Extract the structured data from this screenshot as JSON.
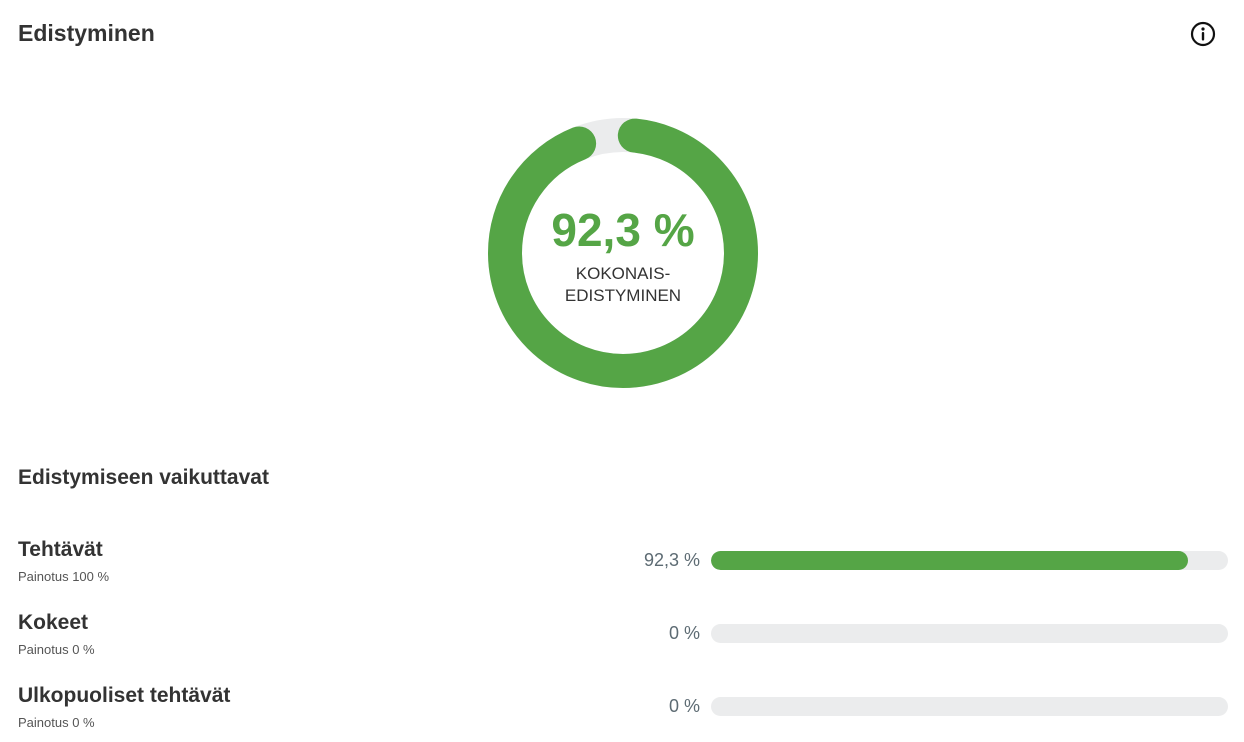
{
  "header": {
    "title": "Edistyminen",
    "info_icon": "info-circle-icon"
  },
  "overall": {
    "value_text": "92,3 %",
    "value": 92.3,
    "label_line1": "KOKONAIS-",
    "label_line2": "EDISTYMINEN"
  },
  "contributors": {
    "heading": "Edistymiseen vaikuttavat",
    "items": [
      {
        "name": "Tehtävät",
        "weight": "Painotus 100 %",
        "percent_text": "92,3 %",
        "percent": 92.3
      },
      {
        "name": "Kokeet",
        "weight": "Painotus 0 %",
        "percent_text": "0 %",
        "percent": 0
      },
      {
        "name": "Ulkopuoliset tehtävät",
        "weight": "Painotus 0 %",
        "percent_text": "0 %",
        "percent": 0
      }
    ]
  },
  "colors": {
    "progress": "#55a546",
    "track": "#ebeced",
    "text": "#333333",
    "percent_text": "#5d6b73"
  }
}
